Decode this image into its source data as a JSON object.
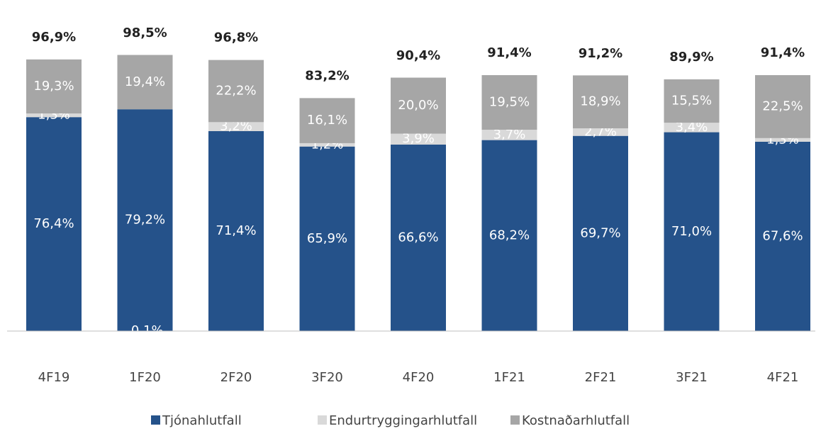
{
  "chart_data": {
    "type": "stacked_bar",
    "categories": [
      "4F19",
      "1F20",
      "2F20",
      "3F20",
      "4F20",
      "1F21",
      "2F21",
      "3F21",
      "4F21"
    ],
    "series": [
      {
        "name": "Tjónahlutfall",
        "color": "#25528a",
        "values": [
          76.4,
          79.2,
          71.4,
          65.9,
          66.6,
          68.2,
          69.7,
          71.0,
          67.6
        ],
        "value_labels": [
          "76,4%",
          "79,2%",
          "71,4%",
          "65,9%",
          "66,6%",
          "68,2%",
          "69,7%",
          "71,0%",
          "67,6%"
        ]
      },
      {
        "name": "Endurtryggingarhlutfall",
        "color": "#d9d9d9",
        "values": [
          1.3,
          -0.1,
          3.2,
          1.2,
          3.9,
          3.7,
          2.7,
          3.4,
          1.3
        ],
        "value_labels": [
          "1,3%",
          "-0,1%",
          "3,2%",
          "1,2%",
          "3,9%",
          "3,7%",
          "2,7%",
          "3,4%",
          "1,3%"
        ]
      },
      {
        "name": "Kostnaðarhlutfall",
        "color": "#a6a6a6",
        "values": [
          19.3,
          19.4,
          22.2,
          16.1,
          20.0,
          19.5,
          18.9,
          15.5,
          22.5
        ],
        "value_labels": [
          "19,3%",
          "19,4%",
          "22,2%",
          "16,1%",
          "20,0%",
          "19,5%",
          "18,9%",
          "15,5%",
          "22,5%"
        ]
      }
    ],
    "totals": [
      96.9,
      98.5,
      96.8,
      83.2,
      90.4,
      91.4,
      91.2,
      89.9,
      91.4
    ],
    "total_labels": [
      "96,9%",
      "98,5%",
      "96,8%",
      "83,2%",
      "90,4%",
      "91,4%",
      "91,2%",
      "89,9%",
      "91,4%"
    ],
    "ylim": [
      0,
      110
    ]
  }
}
